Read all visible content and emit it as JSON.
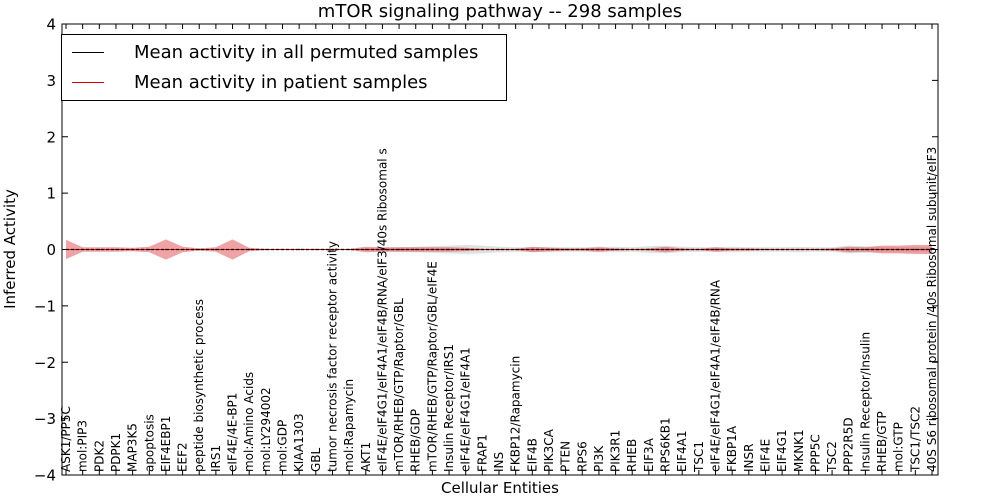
{
  "chart_data": {
    "type": "line",
    "title": "mTOR signaling pathway -- 298 samples",
    "xlabel": "Cellular Entities",
    "ylabel": "Inferred Activity",
    "ylim": [
      -4,
      4
    ],
    "yticks": [
      -4,
      -3,
      -2,
      -1,
      0,
      1,
      2,
      3,
      4
    ],
    "ytick_labels": [
      "−4",
      "−3",
      "−2",
      "−1",
      "0",
      "1",
      "2",
      "3",
      "4"
    ],
    "legend_position": "top-left",
    "categories": [
      "ASK1/PP5C",
      "mol:PIP3",
      "PDK2",
      "PDPK1",
      "MAP3K5",
      "apoptosis",
      "EIF4EBP1",
      "EEF2",
      "peptide biosynthetic process",
      "IRS1",
      "eIF4E/4E-BP1",
      "mol:Amino Acids",
      "mol:LY294002",
      "mol:GDP",
      "KIAA1303",
      "GBL",
      "tumor necrosis factor receptor activity",
      "mol:Rapamycin",
      "AKT1",
      "eIF4E/eIF4G1/eIF4A1/eIF4B/RNA/eIF3/40s Ribosomal s",
      "mTOR/RHEB/GTP/Raptor/GBL",
      "RHEB/GDP",
      "mTOR/RHEB/GTP/Raptor/GBL/eIF4E",
      "Insulin Receptor/IRS1",
      "eIF4E/eIF4G1/eIF4A1",
      "FRAP1",
      "INS",
      "FKBP12/Rapamycin",
      "EIF4B",
      "PIK3CA",
      "PTEN",
      "RPS6",
      "PI3K",
      "PIK3R1",
      "RHEB",
      "EIF3A",
      "RPS6KB1",
      "EIF4A1",
      "TSC1",
      "eIF4E/eIF4G1/eIF4A1/eIF4B/RNA",
      "FKBP1A",
      "INSR",
      "EIF4E",
      "EIF4G1",
      "MKNK1",
      "PPP5C",
      "TSC2",
      "PPP2R5D",
      "Insulin Receptor/Insulin",
      "RHEB/GTP",
      "mol:GTP",
      "TSC1/TSC2",
      "40S S6 ribosomal protein /40s Ribosomal subunit/eIF3"
    ],
    "series": [
      {
        "name": "Mean activity in all permuted samples",
        "color": "#000000",
        "values": [
          0,
          0,
          0,
          0,
          0,
          0,
          0,
          0,
          0,
          0,
          0,
          0,
          0,
          0,
          0,
          0,
          0,
          0,
          0,
          0,
          0,
          0,
          0,
          0,
          0,
          0,
          0,
          0,
          0,
          0,
          0,
          0,
          0,
          0,
          0,
          0,
          0,
          0,
          0,
          0,
          0,
          0,
          0,
          0,
          0,
          0,
          0,
          0,
          0,
          0,
          0,
          0,
          0
        ],
        "band_width": [
          0,
          0,
          0,
          0,
          0,
          0,
          0,
          0,
          0,
          0,
          0,
          0,
          0,
          0,
          0,
          0,
          0,
          0,
          0.02,
          0.03,
          0.04,
          0.05,
          0.06,
          0.07,
          0.08,
          0.07,
          0.05,
          0.04,
          0.04,
          0.05,
          0.04,
          0.04,
          0.05,
          0.05,
          0.04,
          0.06,
          0.07,
          0.05,
          0.04,
          0.04,
          0.05,
          0.04,
          0.04,
          0.04,
          0.05,
          0.04,
          0.04,
          0.07,
          0.06,
          0.04,
          0.04,
          0.04,
          0.04
        ]
      },
      {
        "name": "Mean activity in patient samples",
        "color": "#cc0000",
        "values": [
          0,
          0,
          0,
          0,
          0,
          0,
          0,
          0,
          0,
          0,
          0,
          0,
          0,
          0,
          0,
          0,
          0,
          0,
          0,
          0,
          0,
          0,
          0,
          0,
          0,
          0,
          0,
          0,
          0,
          0,
          0,
          0,
          0,
          0,
          0,
          0,
          0,
          0,
          0,
          0,
          0,
          0,
          0,
          0,
          0,
          0,
          0,
          0,
          0,
          0,
          0,
          0,
          0
        ],
        "band_width": [
          0.17,
          0.04,
          0.04,
          0.04,
          0.03,
          0.05,
          0.18,
          0.05,
          0.02,
          0.04,
          0.18,
          0.03,
          0.01,
          0.01,
          0.01,
          0.01,
          0.01,
          0.01,
          0.05,
          0.04,
          0.04,
          0.04,
          0.04,
          0.04,
          0.03,
          0.01,
          0.01,
          0.01,
          0.05,
          0.03,
          0.02,
          0.02,
          0.04,
          0.02,
          0.01,
          0.02,
          0.05,
          0.02,
          0.01,
          0.04,
          0.02,
          0.02,
          0.01,
          0.01,
          0.01,
          0.01,
          0.02,
          0.05,
          0.04,
          0.07,
          0.07,
          0.08,
          0.08
        ]
      }
    ]
  }
}
